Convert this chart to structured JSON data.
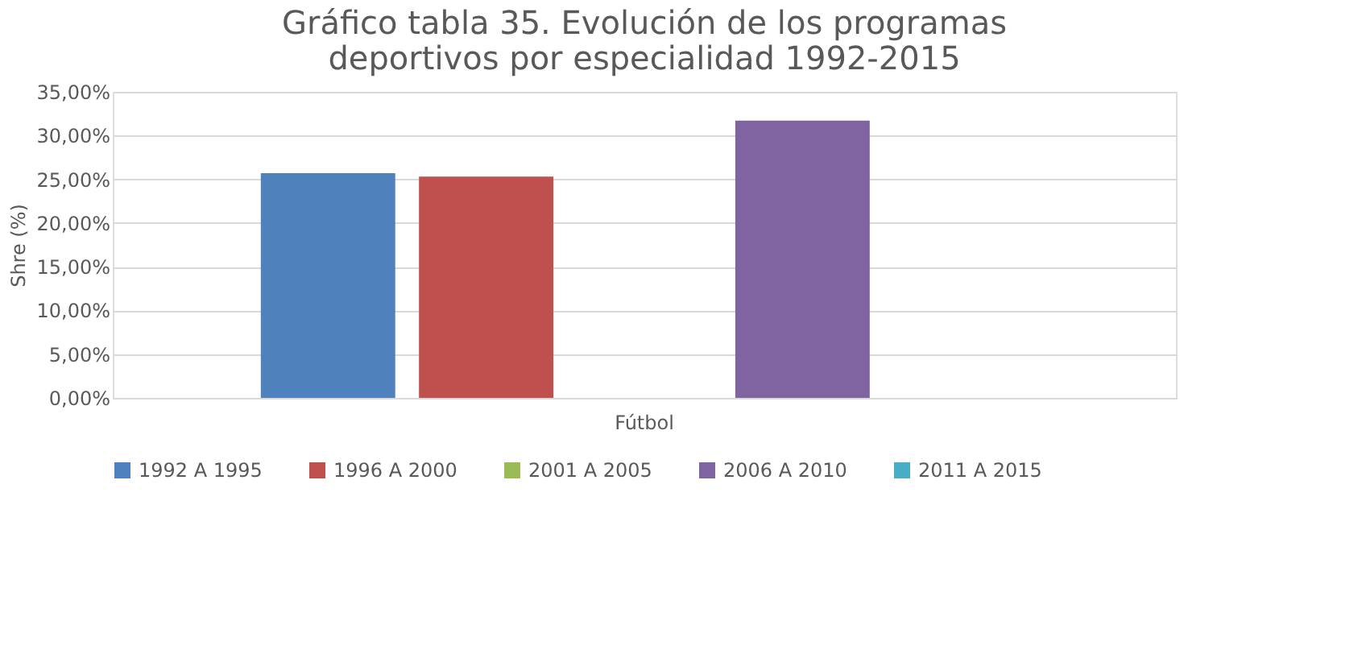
{
  "chart_data": {
    "type": "bar",
    "title": "Gráfico tabla 35. Evolución de los programas deportivos por especialidad 1992-2015",
    "ylabel": "Shre (%)",
    "categories": [
      "Fútbol"
    ],
    "series": [
      {
        "name": "1992 A 1995",
        "color": "#4f81bd",
        "values": [
          25.7
        ]
      },
      {
        "name": "1996 A 2000",
        "color": "#c0504d",
        "values": [
          25.3
        ]
      },
      {
        "name": "2001 A 2005",
        "color": "#9bbb59",
        "values": [
          0
        ]
      },
      {
        "name": "2006 A 2010",
        "color": "#8064a2",
        "values": [
          31.7
        ]
      },
      {
        "name": "2011 A 2015",
        "color": "#4bacc6",
        "values": [
          0
        ]
      }
    ],
    "ylim": [
      0,
      35
    ],
    "yticks": [
      {
        "value": 0,
        "label": "0,00%"
      },
      {
        "value": 5,
        "label": "5,00%"
      },
      {
        "value": 10,
        "label": "10,00%"
      },
      {
        "value": 15,
        "label": "15,00%"
      },
      {
        "value": 20,
        "label": "20,00%"
      },
      {
        "value": 25,
        "label": "25,00%"
      },
      {
        "value": 30,
        "label": "30,00%"
      },
      {
        "value": 35,
        "label": "35,00%"
      }
    ],
    "grid": "y",
    "legend": "bottom"
  }
}
